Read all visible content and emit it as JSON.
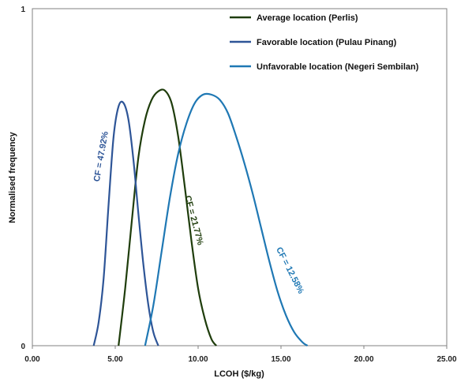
{
  "chart_data": {
    "type": "line",
    "title": "",
    "xlabel": "LCOH ($/kg)",
    "ylabel": "Normalised frequency",
    "xlim": [
      0,
      25
    ],
    "ylim": [
      0,
      1
    ],
    "x_ticks": [
      "0.00",
      "5.00",
      "10.00",
      "15.00",
      "20.00",
      "25.00"
    ],
    "y_ticks": [
      "0",
      "1"
    ],
    "grid": false,
    "legend_position": "top-right",
    "series": [
      {
        "name": "Average location (Perlis)",
        "color": "#1f3d0c",
        "annotation": "CF = 21.77%",
        "x": [
          5.2,
          5.6,
          6.0,
          6.4,
          6.8,
          7.2,
          7.6,
          8.0,
          8.4,
          8.8,
          9.2,
          9.6,
          10.0,
          10.4,
          10.8,
          11.1
        ],
        "y": [
          0.0,
          0.17,
          0.37,
          0.56,
          0.67,
          0.73,
          0.755,
          0.757,
          0.72,
          0.62,
          0.47,
          0.31,
          0.17,
          0.08,
          0.02,
          0.0
        ]
      },
      {
        "name": "Favorable location (Pulau Pinang)",
        "color": "#2e5597",
        "annotation": "CF = 47.92%",
        "x": [
          3.7,
          4.0,
          4.3,
          4.6,
          4.9,
          5.2,
          5.5,
          5.8,
          6.1,
          6.4,
          6.7,
          7.0,
          7.3,
          7.6
        ],
        "y": [
          0.0,
          0.07,
          0.2,
          0.42,
          0.62,
          0.71,
          0.72,
          0.67,
          0.55,
          0.39,
          0.24,
          0.12,
          0.04,
          0.0
        ]
      },
      {
        "name": "Unfavorable location (Negeri Sembilan)",
        "color": "#1f78b4",
        "annotation": "CF = 12.58%",
        "x": [
          6.8,
          7.3,
          7.8,
          8.3,
          8.8,
          9.3,
          9.8,
          10.3,
          10.8,
          11.3,
          11.8,
          12.3,
          12.8,
          13.3,
          13.8,
          14.3,
          14.8,
          15.3,
          15.8,
          16.3,
          16.6
        ],
        "y": [
          0.0,
          0.12,
          0.28,
          0.44,
          0.57,
          0.66,
          0.72,
          0.745,
          0.745,
          0.73,
          0.69,
          0.62,
          0.54,
          0.45,
          0.35,
          0.25,
          0.16,
          0.09,
          0.04,
          0.01,
          0.0
        ]
      }
    ]
  }
}
